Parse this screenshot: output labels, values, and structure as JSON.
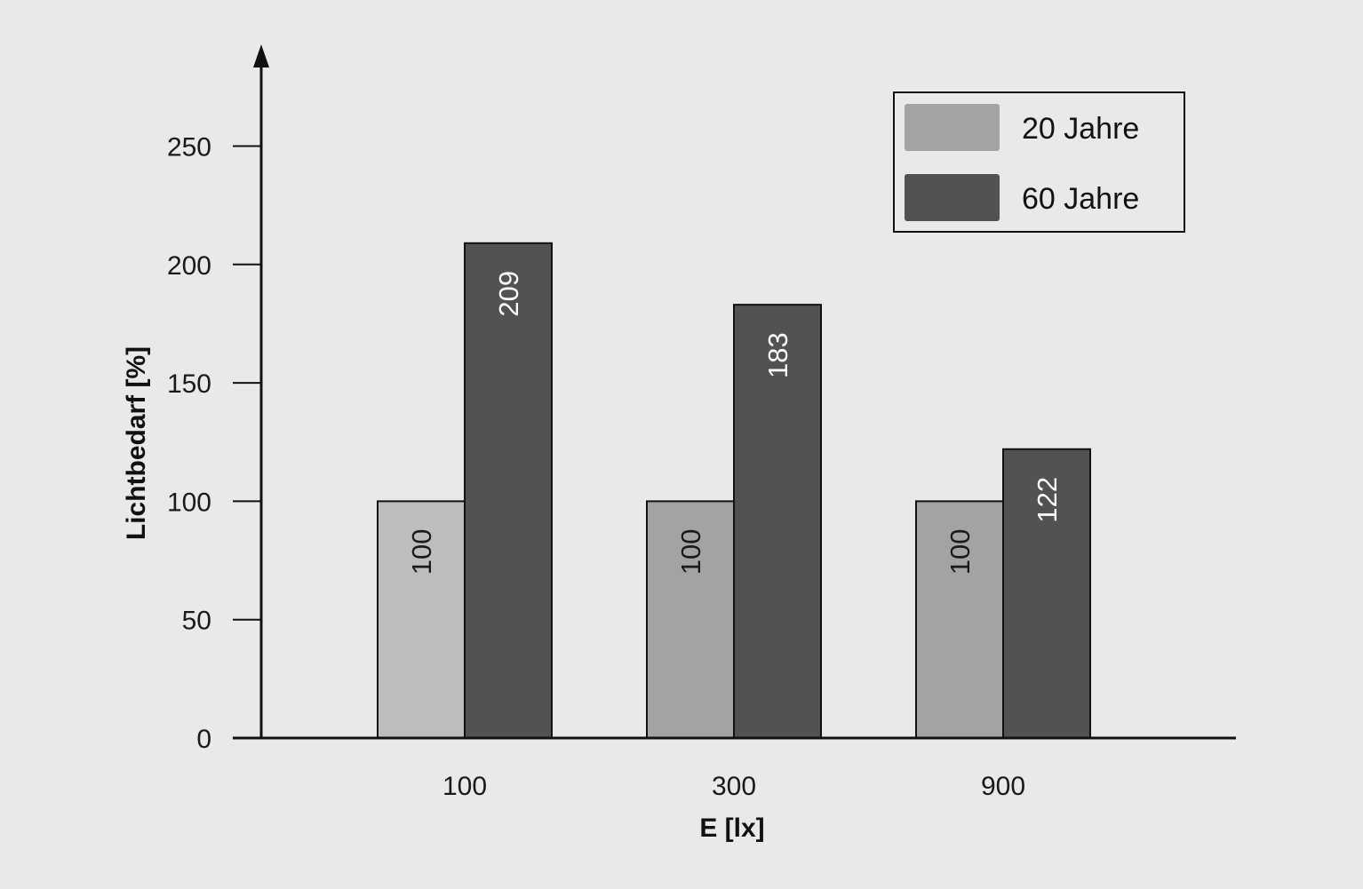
{
  "colors": {
    "background": "#e9e9e9",
    "axis": "#111111",
    "series_light_first": "#bdbdbd",
    "series_light": "#a3a3a3",
    "series_dark": "#525252",
    "label_on_light": "#1a1a1a",
    "label_on_dark": "#ffffff"
  },
  "chart_data": {
    "type": "bar",
    "categories": [
      "100",
      "300",
      "900"
    ],
    "series": [
      {
        "name": "20 Jahre",
        "values": [
          100,
          100,
          100
        ],
        "labels": [
          "100",
          "100",
          "100"
        ]
      },
      {
        "name": "60 Jahre",
        "values": [
          209,
          183,
          122
        ],
        "labels": [
          "209",
          "183",
          "122"
        ]
      }
    ],
    "title": "",
    "xlabel": "E [lx]",
    "ylabel": "Lichtbedarf [%]",
    "ylim": [
      0,
      280
    ],
    "yticks": [
      0,
      50,
      100,
      150,
      200,
      250
    ],
    "ytick_labels": [
      "0",
      "50",
      "100",
      "150",
      "200",
      "250"
    ],
    "grid": false,
    "legend": "top-right",
    "data_labels": "rotated, inside bars"
  }
}
